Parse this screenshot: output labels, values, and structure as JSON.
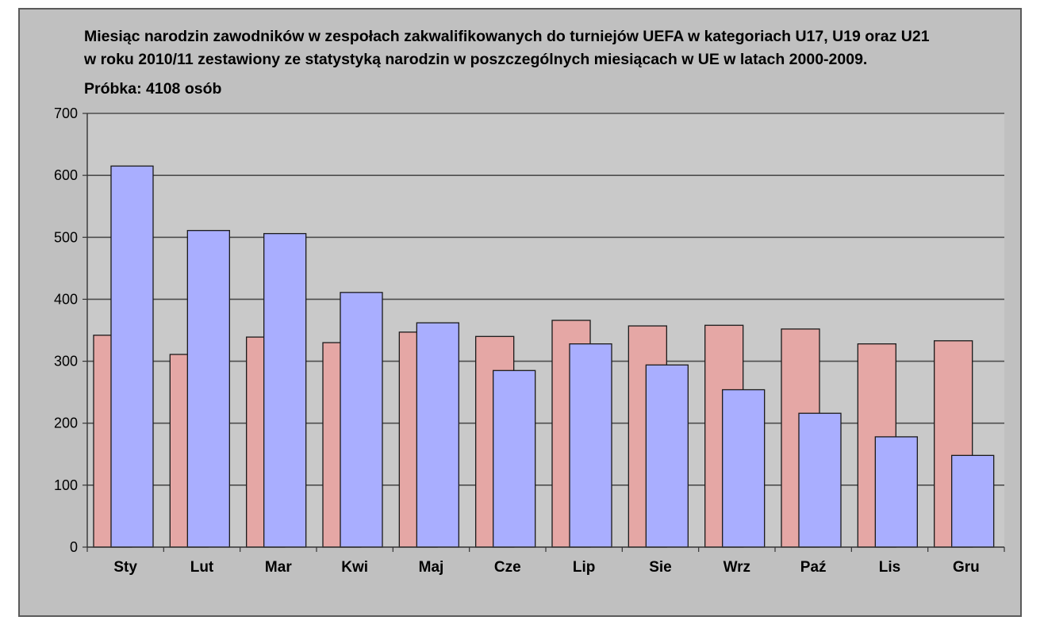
{
  "chart_data": {
    "type": "bar",
    "title_lines": [
      "Miesiąc narodzin zawodników w zespołach zakwalifikowanych do turniejów UEFA w kategoriach U17, U19 oraz U21",
      "w roku 2010/11 zestawiony ze statystyką narodzin w poszczególnych miesiącach w UE w latach 2000-2009."
    ],
    "subtitle": "Próbka: 4108 osób",
    "categories": [
      "Sty",
      "Lut",
      "Mar",
      "Kwi",
      "Maj",
      "Cze",
      "Lip",
      "Sie",
      "Wrz",
      "Paź",
      "Lis",
      "Gru"
    ],
    "series": [
      {
        "color": "#e5a7a5",
        "values": [
          342,
          311,
          339,
          330,
          347,
          340,
          366,
          357,
          358,
          352,
          328,
          333
        ]
      },
      {
        "color": "#a9aeff",
        "values": [
          615,
          511,
          506,
          411,
          362,
          285,
          328,
          294,
          254,
          216,
          178,
          148
        ]
      }
    ],
    "ylim": [
      0,
      700
    ],
    "yticks": [
      0,
      100,
      200,
      300,
      400,
      500,
      600,
      700
    ],
    "xlabel": "",
    "ylabel": "",
    "grid": true,
    "legend": "none",
    "colors": {
      "background": "#c0c0c0",
      "gridline": "#4d4d4d",
      "bar_edge": "#1a1a1a"
    }
  }
}
